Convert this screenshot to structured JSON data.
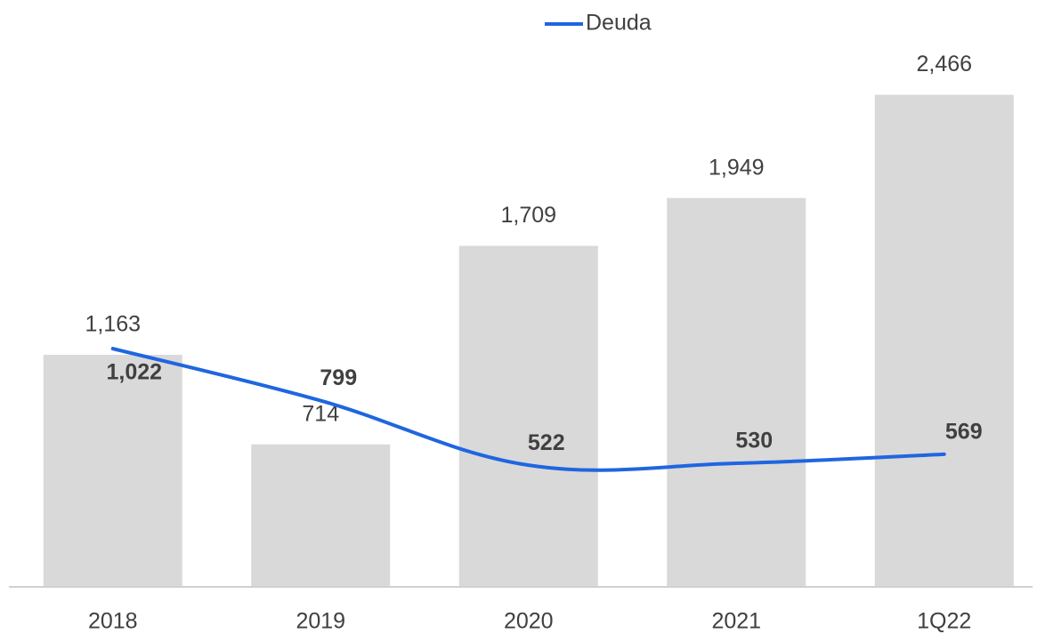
{
  "chart_data": {
    "type": "bar_line",
    "categories": [
      "2018",
      "2019",
      "2020",
      "2021",
      "1Q22"
    ],
    "series": [
      {
        "type": "bar",
        "color": "#d9d9d9",
        "values": [
          1163,
          714,
          1709,
          1949,
          2466
        ],
        "value_labels": [
          "1,163",
          "714",
          "1,709",
          "1,949",
          "2,466"
        ]
      },
      {
        "type": "line",
        "name": "Deuda",
        "color": "#1f66e0",
        "axis": "y2",
        "values": [
          1022,
          799,
          522,
          530,
          569
        ],
        "value_labels": [
          "1,022",
          "799",
          "522",
          "530",
          "569"
        ]
      }
    ],
    "ylim": [
      0,
      2500
    ],
    "y2lim": [
      0,
      2140
    ],
    "legend": "top"
  }
}
